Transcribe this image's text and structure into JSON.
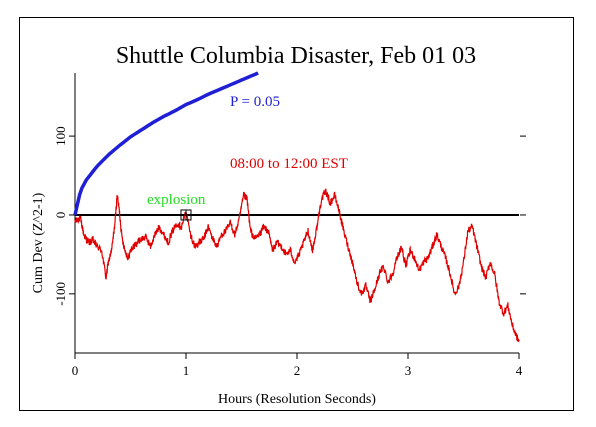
{
  "chart_data": {
    "type": "line",
    "title": "Shuttle Columbia Disaster, Feb 01 03",
    "xlabel": "Hours (Resolution Seconds)",
    "ylabel": "Cum Dev (Z^2-1)",
    "xlim": [
      0,
      4
    ],
    "ylim": [
      -175,
      180
    ],
    "x_ticks": [
      0,
      1,
      2,
      3,
      4
    ],
    "x_tick_labels": [
      "0",
      "1",
      "2",
      "3",
      "4"
    ],
    "y_ticks": [
      -100,
      0,
      100
    ],
    "y_tick_labels": [
      "-100",
      "0",
      "100"
    ],
    "grid": false,
    "annotations": {
      "probability_label": "P = 0.05",
      "time_range_label": "08:00 to 12:00 EST",
      "event_label": "explosion"
    },
    "event_marker": {
      "x": 1.0,
      "y": 0
    },
    "colors": {
      "probability_curve": "#1f1fd6",
      "cumdev_series": "#e00000",
      "event_label": "#22dd22",
      "zero_line": "#000000"
    },
    "probability_curve": {
      "description": "P = 0.05 envelope, y = 1.645*sqrt(2*seconds)",
      "x": [
        0,
        0.05,
        0.1,
        0.2,
        0.3,
        0.4,
        0.5,
        0.6,
        0.7,
        0.8,
        0.9,
        1.0,
        1.1,
        1.2,
        1.3,
        1.4,
        1.5,
        1.6,
        1.65
      ],
      "y": [
        0,
        31,
        44,
        62,
        76,
        88,
        99,
        108,
        117,
        125,
        132,
        140,
        146,
        153,
        159,
        165,
        171,
        177,
        180
      ]
    },
    "series": [
      {
        "x": [
          0,
          0.02,
          0.05,
          0.08,
          0.1,
          0.13,
          0.16,
          0.2,
          0.24,
          0.28,
          0.3,
          0.33,
          0.36,
          0.38,
          0.4,
          0.42,
          0.45,
          0.48,
          0.5,
          0.53,
          0.56,
          0.6,
          0.64,
          0.68,
          0.72,
          0.76,
          0.8,
          0.84,
          0.88,
          0.92,
          0.96,
          1.0,
          1.04,
          1.08,
          1.12,
          1.16,
          1.2,
          1.24,
          1.28,
          1.32,
          1.36,
          1.4,
          1.44,
          1.48,
          1.52,
          1.55,
          1.58,
          1.62,
          1.66,
          1.7,
          1.74,
          1.78,
          1.82,
          1.86,
          1.9,
          1.94,
          1.98,
          2.02,
          2.06,
          2.1,
          2.14,
          2.18,
          2.22,
          2.26,
          2.3,
          2.34,
          2.38,
          2.42,
          2.46,
          2.5,
          2.54,
          2.58,
          2.62,
          2.66,
          2.7,
          2.74,
          2.78,
          2.82,
          2.86,
          2.9,
          2.94,
          2.98,
          3.02,
          3.06,
          3.1,
          3.14,
          3.18,
          3.22,
          3.26,
          3.3,
          3.34,
          3.38,
          3.42,
          3.46,
          3.5,
          3.54,
          3.58,
          3.62,
          3.66,
          3.7,
          3.74,
          3.78,
          3.82,
          3.86,
          3.9,
          3.94,
          3.98,
          4.0
        ],
        "y": [
          -10,
          -5,
          -5,
          -25,
          -30,
          -35,
          -32,
          -40,
          -45,
          -80,
          -60,
          -45,
          -10,
          25,
          5,
          -25,
          -45,
          -55,
          -45,
          -40,
          -35,
          -30,
          -28,
          -40,
          -25,
          -15,
          -25,
          -35,
          -20,
          -10,
          -15,
          5,
          -25,
          -40,
          -35,
          -30,
          -15,
          -30,
          -40,
          -25,
          -20,
          -10,
          -25,
          -5,
          25,
          20,
          -20,
          -30,
          -25,
          -15,
          -20,
          -45,
          -35,
          -40,
          -50,
          -45,
          -60,
          -50,
          -35,
          -20,
          -45,
          -15,
          20,
          30,
          15,
          25,
          5,
          -20,
          -40,
          -60,
          -85,
          -100,
          -90,
          -110,
          -95,
          -75,
          -65,
          -85,
          -75,
          -55,
          -40,
          -65,
          -45,
          -55,
          -70,
          -60,
          -55,
          -40,
          -25,
          -40,
          -55,
          -75,
          -100,
          -90,
          -60,
          -20,
          -15,
          -40,
          -65,
          -80,
          -60,
          -75,
          -110,
          -125,
          -115,
          -140,
          -155,
          -160
        ]
      }
    ]
  }
}
